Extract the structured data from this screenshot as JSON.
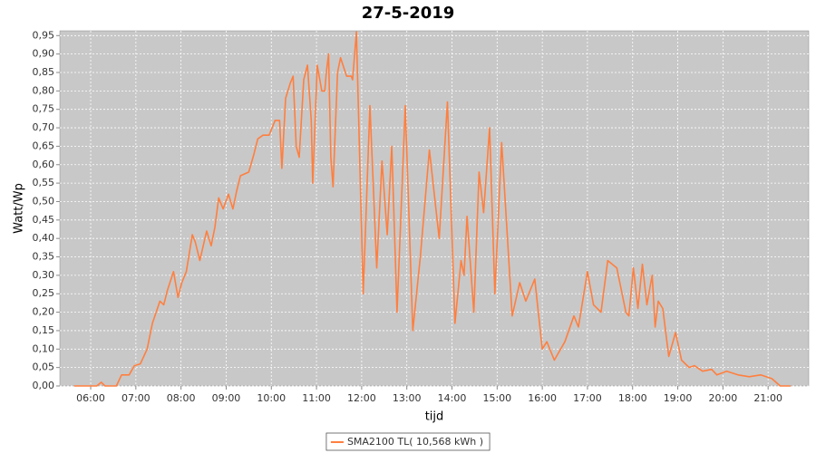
{
  "chart_data": {
    "type": "line",
    "title": "27-5-2019",
    "xlabel": "tijd",
    "ylabel": "Watt/Wp",
    "series": [
      {
        "name": "SMA2100 TL( 10,568 kWh )",
        "color": "#ff7f3f",
        "x": [
          "05:38",
          "06:08",
          "06:14",
          "06:19",
          "06:34",
          "06:41",
          "06:51",
          "06:58",
          "07:06",
          "07:15",
          "07:22",
          "07:32",
          "07:37",
          "07:42",
          "07:50",
          "07:56",
          "08:01",
          "08:07",
          "08:15",
          "08:19",
          "08:25",
          "08:34",
          "08:40",
          "08:45",
          "08:50",
          "08:56",
          "09:03",
          "09:09",
          "09:14",
          "09:19",
          "09:30",
          "09:37",
          "09:42",
          "09:49",
          "09:57",
          "10:05",
          "10:11",
          "10:14",
          "10:19",
          "10:25",
          "10:29",
          "10:33",
          "10:37",
          "10:43",
          "10:48",
          "10:53",
          "10:55",
          "11:01",
          "11:07",
          "11:11",
          "11:13",
          "11:16",
          "11:19",
          "11:22",
          "11:28",
          "11:32",
          "11:40",
          "11:46",
          "11:48",
          "11:53",
          "12:02",
          "12:11",
          "12:20",
          "12:27",
          "12:34",
          "12:40",
          "12:47",
          "12:58",
          "13:08",
          "13:18",
          "13:30",
          "13:43",
          "13:54",
          "14:04",
          "14:12",
          "14:16",
          "14:20",
          "14:29",
          "14:36",
          "14:42",
          "14:50",
          "14:57",
          "15:06",
          "15:20",
          "15:30",
          "15:38",
          "15:50",
          "16:00",
          "16:06",
          "16:16",
          "16:30",
          "16:42",
          "16:48",
          "17:00",
          "17:08",
          "17:18",
          "17:27",
          "17:39",
          "17:51",
          "17:55",
          "18:01",
          "18:07",
          "18:13",
          "18:19",
          "18:26",
          "18:30",
          "18:34",
          "18:40",
          "18:48",
          "18:57",
          "19:05",
          "19:15",
          "19:22",
          "19:33",
          "19:45",
          "19:52",
          "20:05",
          "20:20",
          "20:35",
          "20:50",
          "21:05",
          "21:16",
          "21:30"
        ],
        "values": [
          0,
          0,
          0.01,
          0,
          0,
          0.03,
          0.03,
          0.055,
          0.06,
          0.1,
          0.17,
          0.23,
          0.22,
          0.26,
          0.31,
          0.24,
          0.28,
          0.31,
          0.41,
          0.39,
          0.34,
          0.42,
          0.38,
          0.43,
          0.51,
          0.48,
          0.52,
          0.48,
          0.53,
          0.57,
          0.58,
          0.63,
          0.67,
          0.68,
          0.68,
          0.72,
          0.72,
          0.59,
          0.78,
          0.82,
          0.84,
          0.65,
          0.62,
          0.83,
          0.87,
          0.72,
          0.55,
          0.87,
          0.8,
          0.8,
          0.85,
          0.9,
          0.62,
          0.54,
          0.85,
          0.89,
          0.84,
          0.84,
          0.83,
          0.96,
          0.25,
          0.76,
          0.32,
          0.61,
          0.41,
          0.65,
          0.2,
          0.76,
          0.15,
          0.35,
          0.64,
          0.4,
          0.77,
          0.17,
          0.34,
          0.3,
          0.46,
          0.2,
          0.58,
          0.47,
          0.7,
          0.25,
          0.66,
          0.19,
          0.28,
          0.23,
          0.29,
          0.1,
          0.12,
          0.07,
          0.12,
          0.19,
          0.16,
          0.31,
          0.22,
          0.2,
          0.34,
          0.32,
          0.2,
          0.19,
          0.32,
          0.21,
          0.33,
          0.22,
          0.3,
          0.16,
          0.23,
          0.21,
          0.08,
          0.145,
          0.07,
          0.05,
          0.055,
          0.04,
          0.045,
          0.03,
          0.04,
          0.03,
          0.025,
          0.03,
          0.02,
          0.0,
          0.0
        ]
      }
    ],
    "xlim": [
      "05:19",
      "21:54"
    ],
    "xticks": [
      "06:00",
      "07:00",
      "08:00",
      "09:00",
      "10:00",
      "11:00",
      "12:00",
      "13:00",
      "14:00",
      "15:00",
      "16:00",
      "17:00",
      "18:00",
      "19:00",
      "20:00",
      "21:00"
    ],
    "ylim": [
      0,
      0.963
    ],
    "yticks": [
      {
        "value": 0,
        "label": "0,00"
      },
      {
        "value": 0.05,
        "label": "0,05"
      },
      {
        "value": 0.1,
        "label": "0,10"
      },
      {
        "value": 0.15,
        "label": "0,15"
      },
      {
        "value": 0.2,
        "label": "0,20"
      },
      {
        "value": 0.25,
        "label": "0,25"
      },
      {
        "value": 0.3,
        "label": "0,30"
      },
      {
        "value": 0.35,
        "label": "0,35"
      },
      {
        "value": 0.4,
        "label": "0,40"
      },
      {
        "value": 0.45,
        "label": "0,45"
      },
      {
        "value": 0.5,
        "label": "0,50"
      },
      {
        "value": 0.55,
        "label": "0,55"
      },
      {
        "value": 0.6,
        "label": "0,60"
      },
      {
        "value": 0.65,
        "label": "0,65"
      },
      {
        "value": 0.7,
        "label": "0,70"
      },
      {
        "value": 0.75,
        "label": "0,75"
      },
      {
        "value": 0.8,
        "label": "0,80"
      },
      {
        "value": 0.85,
        "label": "0,85"
      },
      {
        "value": 0.9,
        "label": "0,90"
      },
      {
        "value": 0.95,
        "label": "0,95"
      }
    ],
    "grid": true,
    "legend": "bottom"
  }
}
